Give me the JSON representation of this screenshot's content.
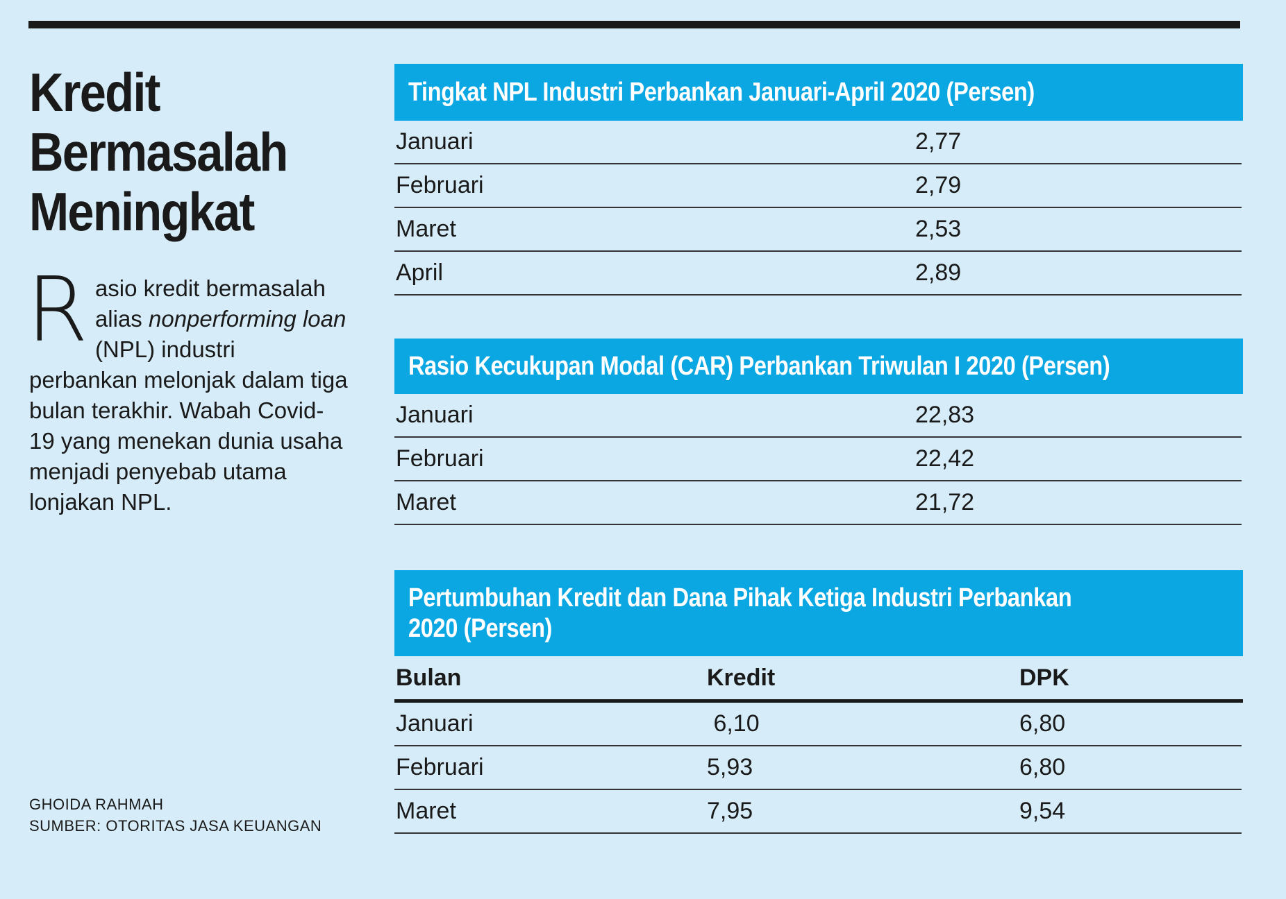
{
  "headline": [
    "Kredit",
    "Bermasalah",
    "Meningkat"
  ],
  "intro": {
    "dropcap": "R",
    "part1": "asio kredit bermasalah alias ",
    "italic": "nonperforming loan",
    "part2": " (NPL) industri perbankan melonjak dalam tiga bulan terakhir. Wabah Covid-19 yang menekan dunia usaha menjadi penyebab utama lonjakan NPL."
  },
  "credits": {
    "author": "GHOIDA RAHMAH",
    "source": "SUMBER: OTORITAS JASA KEUANGAN"
  },
  "colors": {
    "banner": "#0aa7e3",
    "background": "#d6edf9",
    "text": "#1a1a1a"
  },
  "chart_data": [
    {
      "type": "table",
      "title": "Tingkat NPL Industri Perbankan Januari-April 2020 (Persen)",
      "rows": [
        [
          "Januari",
          "2,77"
        ],
        [
          "Februari",
          "2,79"
        ],
        [
          "Maret",
          "2,53"
        ],
        [
          "April",
          "2,89"
        ]
      ]
    },
    {
      "type": "table",
      "title": "Rasio Kecukupan Modal (CAR) Perbankan  Triwulan I 2020 (Persen)",
      "rows": [
        [
          "Januari",
          "22,83"
        ],
        [
          "Februari",
          "22,42"
        ],
        [
          "Maret",
          "21,72"
        ]
      ]
    },
    {
      "type": "table",
      "title": "Pertumbuhan Kredit dan Dana Pihak Ketiga Industri Perbankan 2020 (Persen)",
      "columns": [
        "Bulan",
        "Kredit",
        "DPK"
      ],
      "rows": [
        [
          "Januari",
          " 6,10",
          "6,80"
        ],
        [
          "Februari",
          "5,93",
          "6,80"
        ],
        [
          "Maret",
          "7,95",
          "9,54"
        ]
      ]
    }
  ]
}
